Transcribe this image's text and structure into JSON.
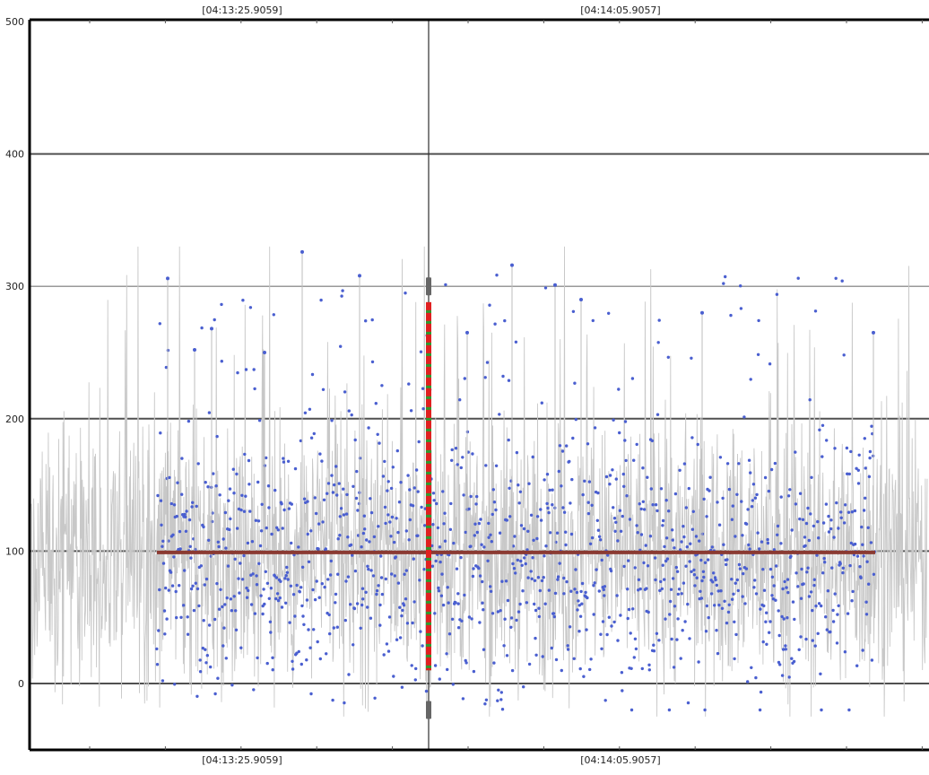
{
  "chart_data": {
    "type": "scatter",
    "title": "",
    "xlabel": "",
    "ylabel": "",
    "ylim": [
      -50,
      500
    ],
    "y_ticks": [
      0,
      100,
      200,
      300,
      400,
      500
    ],
    "x_time_labels_top": [
      "[04:13:25.9059]",
      "[04:14:05.9057]"
    ],
    "x_time_labels_bottom": [
      "[04:13:25.9059]",
      "[04:14:05.9057]"
    ],
    "grid": "horizontal",
    "cursor_time": "[04:13:45.9058]",
    "mean_value": 99,
    "selection_range": {
      "y_min": 10,
      "y_max": 288
    },
    "selection_outliers": [
      -20,
      272,
      300
    ],
    "series": [
      {
        "name": "",
        "kind": "raw-trace",
        "color": "#c8c8c8"
      },
      {
        "name": "",
        "kind": "sample-points",
        "color": "#4a5fd0"
      },
      {
        "name": "",
        "kind": "mean-line",
        "color": "#8b3a32"
      }
    ],
    "highlight_points": [
      306,
      326,
      308,
      316,
      301,
      290,
      265,
      280,
      268,
      252,
      250,
      265
    ],
    "sample_stats": {
      "min": -22,
      "max": 326,
      "typical_low": 20,
      "typical_high": 190
    }
  },
  "colors": {
    "grid": "#505050",
    "grid_light": "#9a9a9a",
    "trace": "#c8c8c8",
    "points": "#4a5fd0",
    "mean": "#8b3a32",
    "cursor": "#303030",
    "selection_red": "#e02020",
    "selection_green": "#2e9a2e",
    "selection_gray": "#666666"
  }
}
